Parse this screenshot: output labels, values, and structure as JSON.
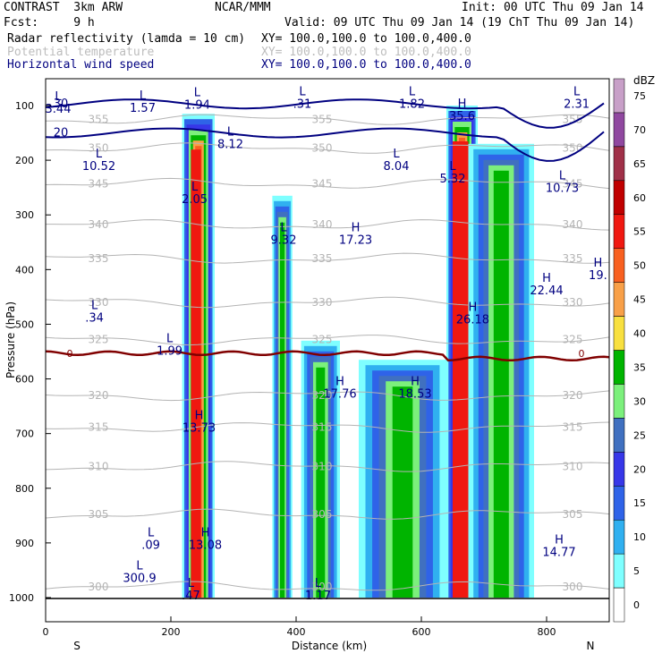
{
  "header": {
    "model": "CONTRAST  3km ARW",
    "org": "NCAR/MMM",
    "init": "Init: 00 UTC Thu 09 Jan 14",
    "fcst": "Fcst:     9 h",
    "valid": "Valid: 09 UTC Thu 09 Jan 14 (19 ChT Thu 09 Jan 14)",
    "fields": [
      {
        "name": "Radar reflectivity (lamda = 10 cm)",
        "xy": "XY= 100.0,100.0 to 100.0,400.0",
        "color": "#000000"
      },
      {
        "name": "Potential temperature",
        "xy": "XY= 100.0,100.0 to 100.0,400.0",
        "color": "#bdbdbd"
      },
      {
        "name": "Horizontal wind speed",
        "xy": "XY= 100.0,100.0 to 100.0,400.0",
        "color": "#000080"
      }
    ]
  },
  "chart_data": {
    "type": "heatmap",
    "title": "",
    "xlabel": "Distance (km)",
    "ylabel": "Pressure (hPa)",
    "xlim": [
      0,
      900
    ],
    "ylim": [
      1000,
      60
    ],
    "x_ticks": [
      "0",
      "200",
      "400",
      "600",
      "800"
    ],
    "y_ticks": [
      "100",
      "200",
      "300",
      "400",
      "500",
      "600",
      "700",
      "800",
      "900",
      "1000"
    ],
    "x_end_labels": {
      "left": "S",
      "right": "N"
    },
    "colorbar": {
      "unit": "dBZ",
      "levels": [
        "0",
        "5",
        "10",
        "15",
        "20",
        "25",
        "30",
        "35",
        "40",
        "45",
        "50",
        "55",
        "60",
        "65",
        "70",
        "75"
      ],
      "colors": [
        "#ffffff",
        "#7fffff",
        "#30b0f0",
        "#2f63e8",
        "#3737e8",
        "#4070c0",
        "#7cf07c",
        "#00b400",
        "#f8e040",
        "#f8a048",
        "#f86020",
        "#f01810",
        "#c00000",
        "#a03048",
        "#9048a0",
        "#c8a0c8"
      ]
    },
    "reflectivity_columns": [
      {
        "x0": 218,
        "x1": 270,
        "ptop": 115,
        "pbot": 1000,
        "core": [
          232,
          248
        ]
      },
      {
        "x0": 362,
        "x1": 394,
        "ptop": 265,
        "pbot": 1000,
        "core": null
      },
      {
        "x0": 408,
        "x1": 470,
        "ptop": 530,
        "pbot": 1000,
        "core": null
      },
      {
        "x0": 500,
        "x1": 640,
        "ptop": 565,
        "pbot": 1000,
        "core": null
      },
      {
        "x0": 640,
        "x1": 690,
        "ptop": 100,
        "pbot": 1000,
        "core": [
          650,
          675
        ]
      },
      {
        "x0": 675,
        "x1": 780,
        "ptop": 170,
        "pbot": 1000,
        "core": null
      }
    ],
    "theta_contours": [
      {
        "label": "355",
        "p": 125
      },
      {
        "label": "350",
        "p": 178
      },
      {
        "label": "345",
        "p": 243
      },
      {
        "label": "340",
        "p": 318
      },
      {
        "label": "335",
        "p": 380
      },
      {
        "label": "330",
        "p": 460
      },
      {
        "label": "325",
        "p": 528
      },
      {
        "label": "320",
        "p": 630
      },
      {
        "label": "315",
        "p": 688
      },
      {
        "label": "310",
        "p": 760
      },
      {
        "label": "305",
        "p": 848
      },
      {
        "label": "300",
        "p": 980
      }
    ],
    "wind_contours": [
      {
        "label": "20",
        "p": 150
      },
      {
        "label": "30",
        "p": 97
      }
    ],
    "freezing_level": {
      "label": "0",
      "p": 553
    },
    "extrema": [
      {
        "kind": "L",
        "value": "3.44",
        "x": 20,
        "p": 100
      },
      {
        "kind": "L",
        "value": "1.57",
        "x": 155,
        "p": 98
      },
      {
        "kind": "L",
        "value": "1.94",
        "x": 242,
        "p": 93
      },
      {
        "kind": "L",
        "value": ".31",
        "x": 410,
        "p": 91
      },
      {
        "kind": "L",
        "value": "1.82",
        "x": 585,
        "p": 91
      },
      {
        "kind": "H",
        "value": "35.6",
        "x": 665,
        "p": 113
      },
      {
        "kind": "L",
        "value": "2.31",
        "x": 848,
        "p": 91
      },
      {
        "kind": "L",
        "value": "8.12",
        "x": 295,
        "p": 165
      },
      {
        "kind": "L",
        "value": "10.52",
        "x": 85,
        "p": 205
      },
      {
        "kind": "L",
        "value": "8.04",
        "x": 560,
        "p": 205
      },
      {
        "kind": "L",
        "value": "5.32",
        "x": 650,
        "p": 228
      },
      {
        "kind": "L",
        "value": "10.73",
        "x": 825,
        "p": 245
      },
      {
        "kind": "L",
        "value": "2.05",
        "x": 238,
        "p": 265
      },
      {
        "kind": "L",
        "value": "9.32",
        "x": 380,
        "p": 340
      },
      {
        "kind": "H",
        "value": "17.23",
        "x": 495,
        "p": 340
      },
      {
        "kind": "H",
        "value": "19.",
        "x": 882,
        "p": 404
      },
      {
        "kind": "H",
        "value": "22.44",
        "x": 800,
        "p": 432
      },
      {
        "kind": "L",
        "value": ".34",
        "x": 78,
        "p": 482
      },
      {
        "kind": "H",
        "value": "26.18",
        "x": 682,
        "p": 485
      },
      {
        "kind": "L",
        "value": "1.99",
        "x": 198,
        "p": 543
      },
      {
        "kind": "H",
        "value": "17.76",
        "x": 470,
        "p": 621
      },
      {
        "kind": "H",
        "value": "18.53",
        "x": 590,
        "p": 621
      },
      {
        "kind": "H",
        "value": "13.73",
        "x": 245,
        "p": 683
      },
      {
        "kind": "L",
        "value": ".09",
        "x": 168,
        "p": 898
      },
      {
        "kind": "H",
        "value": "13.08",
        "x": 255,
        "p": 898
      },
      {
        "kind": "H",
        "value": "14.77",
        "x": 820,
        "p": 911
      },
      {
        "kind": "L",
        "value": "300.9",
        "x": 150,
        "p": 958
      },
      {
        "kind": "L",
        "value": ".47",
        "x": 232,
        "p": 990
      },
      {
        "kind": "L",
        "value": "1.17",
        "x": 435,
        "p": 990
      }
    ]
  }
}
